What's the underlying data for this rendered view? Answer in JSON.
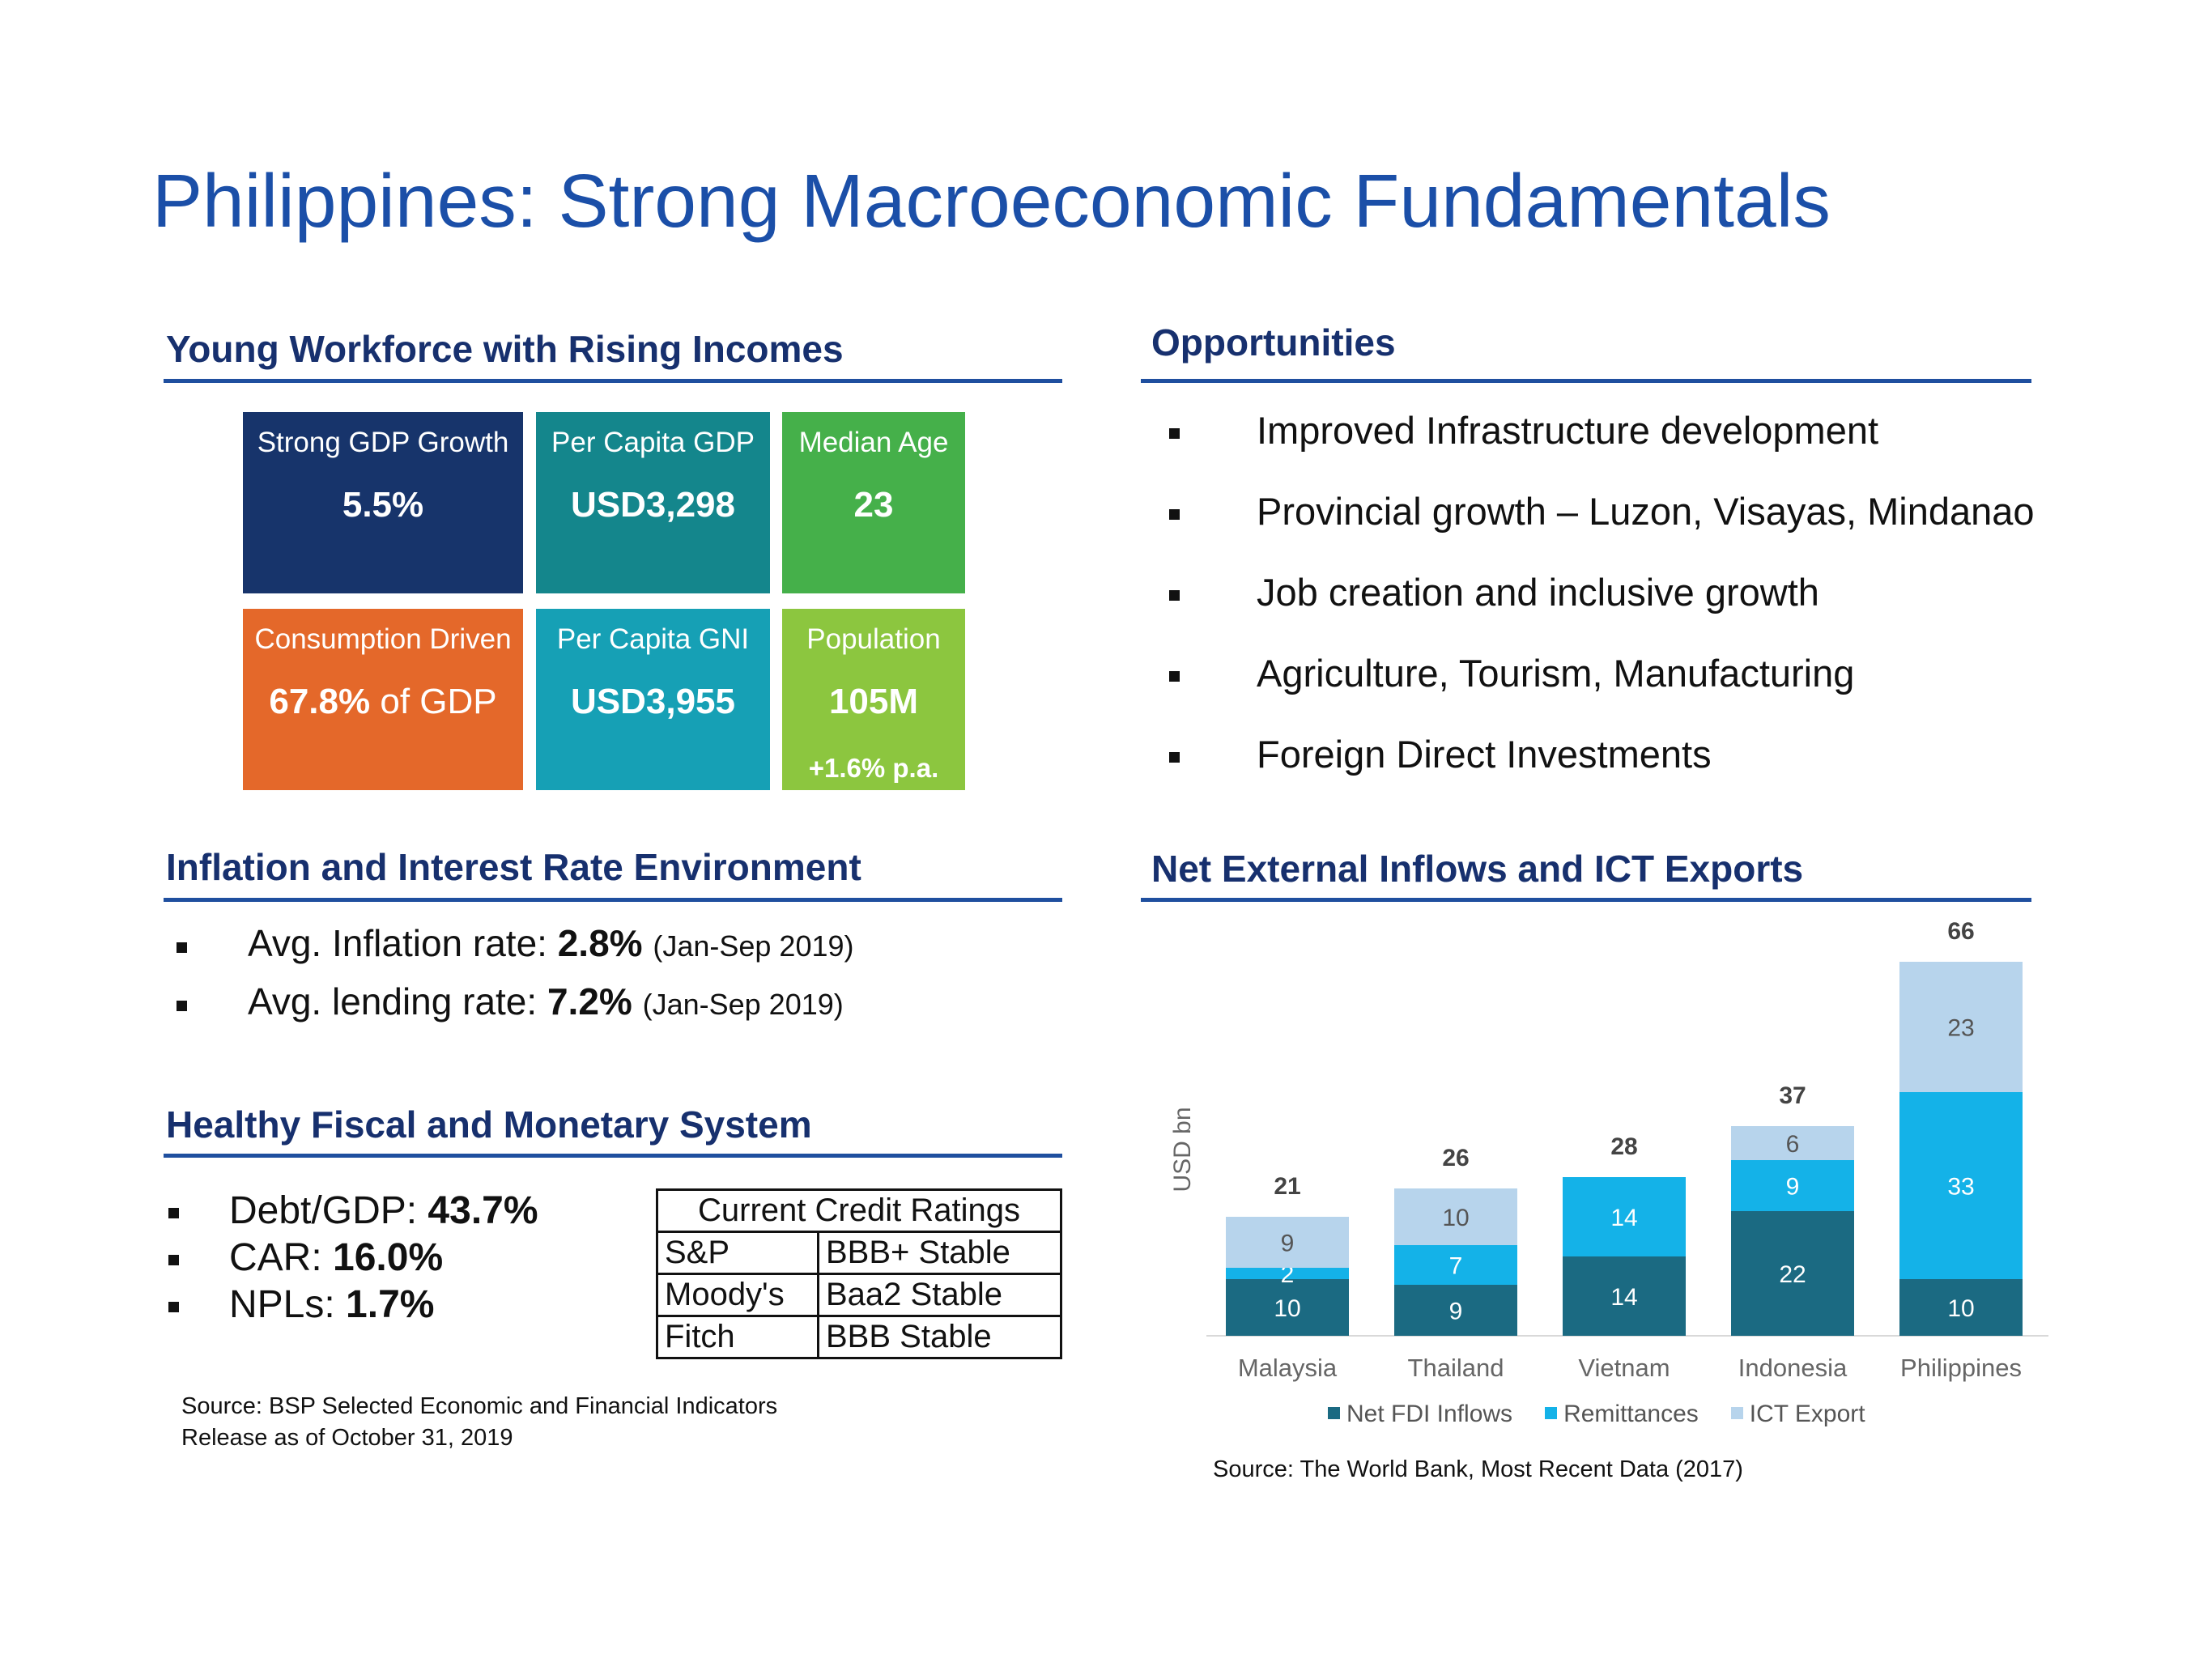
{
  "title": "Philippines: Strong Macroeconomic Fundamentals",
  "sections": {
    "workforce": "Young Workforce with Rising Incomes",
    "opportunities": "Opportunities",
    "inflation": "Inflation and Interest Rate Environment",
    "fiscal": "Healthy Fiscal and Monetary System",
    "inflows": "Net External Inflows and ICT Exports"
  },
  "tiles": [
    {
      "label": "Strong GDP Growth",
      "value": "5.5%",
      "color": "#17346b"
    },
    {
      "label": "Per Capita GDP",
      "value": "USD3,298",
      "color": "#14868c"
    },
    {
      "label": "Median Age",
      "value": "23",
      "color": "#45b04a"
    },
    {
      "label": "Consumption Driven",
      "value": "67.8%",
      "value_suffix": " of GDP",
      "color": "#e4682a"
    },
    {
      "label": "Per Capita GNI",
      "value": "USD3,955",
      "color": "#16a0b5"
    },
    {
      "label": "Population",
      "value": "105M",
      "sub": "+1.6% p.a.",
      "color": "#8cc63f"
    }
  ],
  "opportunities": [
    "Improved Infrastructure development",
    "Provincial growth – Luzon, Visayas, Mindanao",
    "Job creation and inclusive growth",
    "Agriculture, Tourism, Manufacturing",
    "Foreign Direct Investments"
  ],
  "inflation": [
    {
      "label": "Avg. Inflation rate: ",
      "value": "2.8%",
      "note": "(Jan-Sep 2019)"
    },
    {
      "label": "Avg. lending rate: ",
      "value": "7.2%",
      "note": "(Jan-Sep 2019)"
    }
  ],
  "fiscal": [
    {
      "label": "Debt/GDP: ",
      "value": "43.7%"
    },
    {
      "label": "CAR: ",
      "value": "16.0%"
    },
    {
      "label": "NPLs: ",
      "value": "1.7%"
    }
  ],
  "credit_ratings": {
    "header": "Current Credit Ratings",
    "rows": [
      {
        "agency": "S&P",
        "rating": "BBB+ Stable"
      },
      {
        "agency": "Moody's",
        "rating": "Baa2 Stable"
      },
      {
        "agency": "Fitch",
        "rating": "BBB Stable"
      }
    ]
  },
  "source_left": [
    "Source: BSP Selected Economic and Financial Indicators",
    "Release as of October 31, 2019"
  ],
  "source_right": "Source: The World Bank, Most Recent Data (2017)",
  "chart_data": {
    "type": "bar",
    "stacked": true,
    "ylabel": "USD bn",
    "categories": [
      "Malaysia",
      "Thailand",
      "Vietnam",
      "Indonesia",
      "Philippines"
    ],
    "series": [
      {
        "name": "Net FDI Inflows",
        "values": [
          10,
          9,
          14,
          22,
          10
        ],
        "color": "#1b6a82"
      },
      {
        "name": "Remittances",
        "values": [
          2,
          7,
          14,
          9,
          33
        ],
        "color": "#14b2e8"
      },
      {
        "name": "ICT Export",
        "values": [
          9,
          10,
          0,
          6,
          23
        ],
        "color": "#b7d4ec"
      }
    ],
    "totals": [
      21,
      26,
      28,
      37,
      66
    ],
    "legend_position": "bottom"
  }
}
